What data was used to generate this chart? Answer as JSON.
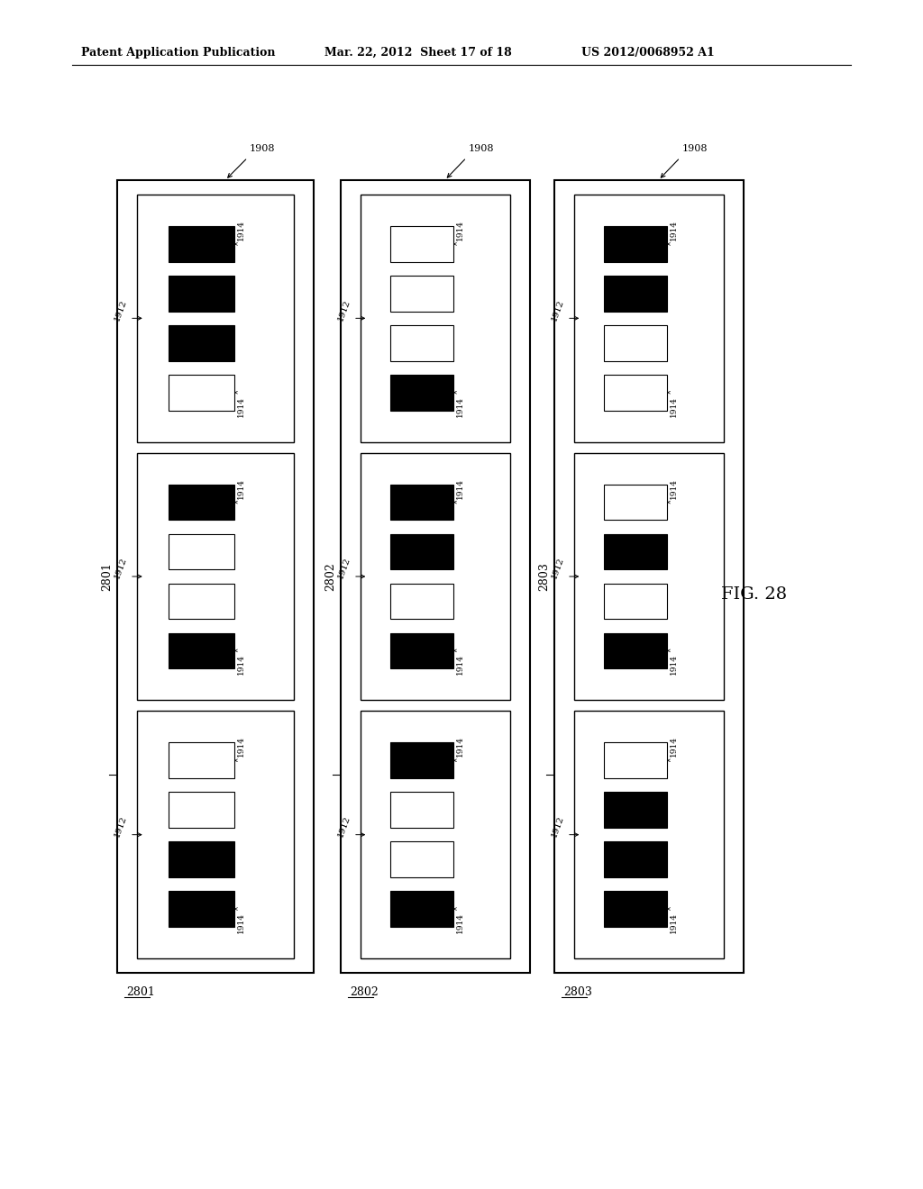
{
  "bg_color": "#ffffff",
  "header_text": "Patent Application Publication",
  "header_date": "Mar. 22, 2012  Sheet 17 of 18",
  "header_patent": "US 2012/0068952 A1",
  "fig_label": "FIG. 28",
  "outer_box_label": "1908",
  "col_labels": [
    "2801",
    "2802",
    "2803"
  ],
  "block_patterns": [
    [
      [
        true,
        true,
        true,
        false
      ],
      [
        true,
        false,
        false,
        true
      ],
      [
        false,
        false,
        true,
        true
      ]
    ],
    [
      [
        false,
        false,
        false,
        true
      ],
      [
        true,
        true,
        false,
        true
      ],
      [
        true,
        false,
        false,
        true
      ]
    ],
    [
      [
        true,
        true,
        false,
        false
      ],
      [
        false,
        true,
        false,
        true
      ],
      [
        false,
        true,
        true,
        true
      ]
    ]
  ]
}
